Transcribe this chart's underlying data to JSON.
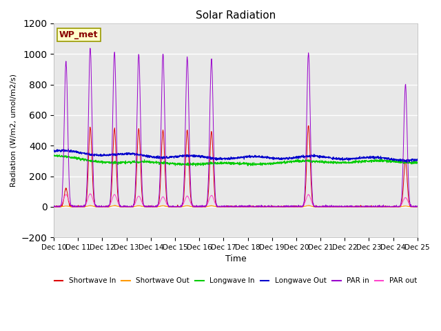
{
  "title": "Solar Radiation",
  "ylabel": "Radiation (W/m2, umol/m2/s)",
  "xlabel": "Time",
  "ylim": [
    -200,
    1200
  ],
  "yticks": [
    -200,
    0,
    200,
    400,
    600,
    800,
    1000,
    1200
  ],
  "n_days": 15,
  "pts_per_day": 144,
  "start_day": 10,
  "plot_bg_color": "#e8e8e8",
  "legend_entries": [
    "Shortwave In",
    "Shortwave Out",
    "Longwave In",
    "Longwave Out",
    "PAR in",
    "PAR out"
  ],
  "legend_colors": [
    "#dd0000",
    "#ff9900",
    "#00cc00",
    "#0000cc",
    "#9900cc",
    "#ff44cc"
  ],
  "annotation_text": "WP_met",
  "annotation_bg": "#ffffcc",
  "annotation_border": "#999900"
}
